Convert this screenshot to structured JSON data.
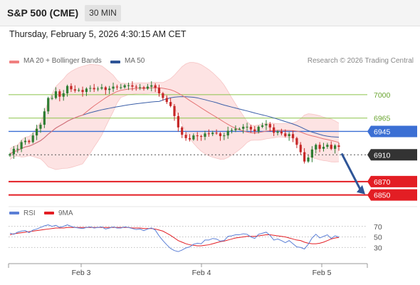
{
  "header": {
    "title": "S&P 500 (CME)",
    "timeframe": "30 MIN"
  },
  "datetime": "Thursday, February 5, 2026 4:30:15 AM CET",
  "legend": {
    "items": [
      {
        "label": "MA 20 + Bollinger Bands",
        "color": "#f08080"
      },
      {
        "label": "MA 50",
        "color": "#2f5597"
      }
    ],
    "credit": "Research © 2026 Trading Central"
  },
  "colors": {
    "up": "#2e7d32",
    "down": "#c62828",
    "bands": "#fde3e3",
    "ma20": "#e57373",
    "ma50": "#3b5fa8",
    "support": "#e31e24",
    "resistance_weak": "#8bc34a",
    "resistance": "#3b6fd4",
    "last": "#333333",
    "arrow": "#2f5597",
    "rsi": "#5b7fd6",
    "rsi_ma": "#e31e24"
  },
  "chart_data": {
    "type": "candlestick",
    "x_ticks": [
      "Feb 3",
      "Feb 4",
      "Feb 5"
    ],
    "y_range": [
      6840,
      7035
    ],
    "levels": [
      {
        "value": 7000,
        "label": "7000",
        "kind": "resistance-weak"
      },
      {
        "value": 6965,
        "label": "6965",
        "kind": "resistance-weak"
      },
      {
        "value": 6945,
        "label": "6945",
        "kind": "resistance"
      },
      {
        "value": 6910,
        "label": "6910",
        "kind": "last-price"
      },
      {
        "value": 6870,
        "label": "6870",
        "kind": "support"
      },
      {
        "value": 6850,
        "label": "6850",
        "kind": "support"
      }
    ],
    "forecast": {
      "from": 6912,
      "to": 6852,
      "direction": "down"
    },
    "close": [
      6911,
      6919,
      6919,
      6929,
      6931,
      6929,
      6939,
      6949,
      6955,
      6975,
      6995,
      6995,
      7005,
      6997,
      7002,
      7013,
      7008,
      7006,
      7007,
      7004,
      7009,
      7010,
      7008,
      7009,
      7011,
      7007,
      7009,
      7012,
      7011,
      7011,
      7014,
      7014,
      7012,
      7011,
      7011,
      7009,
      7012,
      7014,
      7010,
      7002,
      6995,
      6989,
      6983,
      6968,
      6951,
      6940,
      6935,
      6933,
      6939,
      6938,
      6937,
      6942,
      6941,
      6943,
      6942,
      6938,
      6939,
      6946,
      6947,
      6949,
      6949,
      6952,
      6952,
      6948,
      6945,
      6952,
      6954,
      6956,
      6951,
      6943,
      6945,
      6942,
      6938,
      6941,
      6935,
      6925,
      6914,
      6900,
      6906,
      6918,
      6925,
      6919,
      6922,
      6925,
      6919,
      6924,
      6922
    ],
    "rsi": {
      "levels": [
        70,
        50,
        30
      ],
      "range": [
        10,
        90
      ],
      "values": [
        57,
        55,
        59,
        61,
        62,
        58,
        63,
        65,
        68,
        71,
        73,
        70,
        72,
        68,
        70,
        73,
        70,
        68,
        67,
        66,
        68,
        69,
        67,
        68,
        69,
        65,
        67,
        69,
        67,
        67,
        69,
        68,
        66,
        64,
        65,
        62,
        65,
        67,
        63,
        52,
        43,
        35,
        28,
        24,
        22,
        25,
        29,
        31,
        36,
        38,
        37,
        44,
        44,
        47,
        46,
        42,
        43,
        51,
        52,
        54,
        54,
        56,
        55,
        50,
        47,
        55,
        57,
        59,
        53,
        44,
        46,
        43,
        39,
        43,
        37,
        31,
        30,
        27,
        36,
        48,
        55,
        48,
        51,
        54,
        47,
        52,
        50
      ],
      "ma": [
        54,
        56,
        57,
        58,
        59,
        60,
        61,
        62,
        63,
        64,
        65,
        66,
        67,
        67,
        67,
        68,
        68,
        68,
        68,
        68,
        68,
        68,
        68,
        68,
        68,
        68,
        68,
        68,
        68,
        68,
        68,
        68,
        67,
        67,
        67,
        66,
        66,
        66,
        65,
        63,
        61,
        57,
        53,
        48,
        43,
        40,
        37,
        35,
        34,
        33,
        33,
        34,
        35,
        37,
        39,
        41,
        42,
        44,
        46,
        48,
        49,
        50,
        51,
        51,
        51,
        52,
        53,
        54,
        54,
        53,
        52,
        51,
        50,
        48,
        46,
        44,
        43,
        40,
        38,
        37,
        37,
        38,
        40,
        43,
        46,
        48,
        49
      ]
    },
    "rsi_legend": [
      {
        "label": "RSI",
        "color": "#5b7fd6"
      },
      {
        "label": "9MA",
        "color": "#e31e24"
      }
    ]
  }
}
